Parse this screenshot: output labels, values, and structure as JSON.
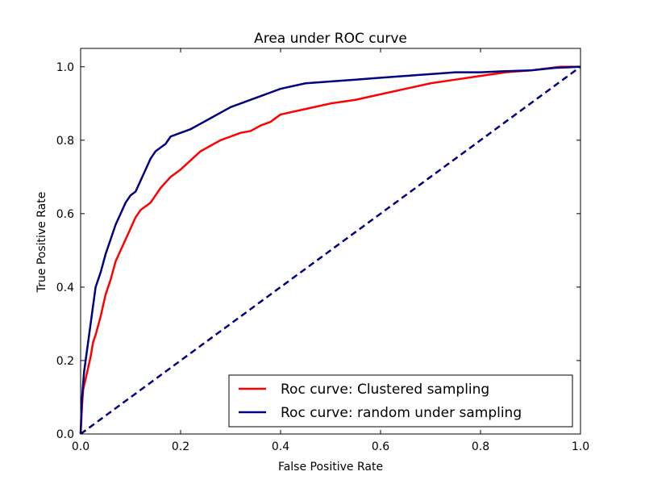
{
  "chart_data": {
    "type": "line",
    "title": "Area under ROC curve",
    "xlabel": "False Positive Rate",
    "ylabel": "True Positive Rate",
    "xlim": [
      0.0,
      1.0
    ],
    "ylim": [
      0.0,
      1.05
    ],
    "xticks": [
      "0.0",
      "0.2",
      "0.4",
      "0.6",
      "0.8",
      "1.0"
    ],
    "yticks": [
      "0.0",
      "0.2",
      "0.4",
      "0.6",
      "0.8",
      "1.0"
    ],
    "grid": false,
    "legend_position": "lower-right",
    "series": [
      {
        "name": "Roc curve: Clustered sampling",
        "color": "#ff0000",
        "style": "solid",
        "x": [
          0.0,
          0.003,
          0.005,
          0.01,
          0.015,
          0.02,
          0.025,
          0.03,
          0.04,
          0.05,
          0.06,
          0.07,
          0.08,
          0.09,
          0.1,
          0.11,
          0.12,
          0.13,
          0.14,
          0.15,
          0.16,
          0.18,
          0.2,
          0.22,
          0.24,
          0.26,
          0.28,
          0.3,
          0.32,
          0.34,
          0.36,
          0.38,
          0.4,
          0.45,
          0.5,
          0.55,
          0.6,
          0.65,
          0.7,
          0.75,
          0.8,
          0.85,
          0.9,
          0.93,
          0.96,
          1.0
        ],
        "y": [
          0.0,
          0.08,
          0.12,
          0.15,
          0.18,
          0.21,
          0.25,
          0.27,
          0.32,
          0.38,
          0.42,
          0.47,
          0.5,
          0.53,
          0.56,
          0.59,
          0.61,
          0.62,
          0.63,
          0.65,
          0.67,
          0.7,
          0.72,
          0.745,
          0.77,
          0.785,
          0.8,
          0.81,
          0.82,
          0.825,
          0.84,
          0.85,
          0.87,
          0.885,
          0.9,
          0.91,
          0.925,
          0.94,
          0.955,
          0.965,
          0.975,
          0.985,
          0.99,
          0.995,
          1.0,
          1.0
        ]
      },
      {
        "name": "Roc curve: random under sampling",
        "color": "#000080",
        "style": "solid",
        "x": [
          0.0,
          0.002,
          0.004,
          0.007,
          0.01,
          0.015,
          0.02,
          0.025,
          0.03,
          0.04,
          0.05,
          0.06,
          0.07,
          0.08,
          0.09,
          0.1,
          0.11,
          0.12,
          0.13,
          0.14,
          0.15,
          0.16,
          0.17,
          0.18,
          0.2,
          0.22,
          0.24,
          0.26,
          0.28,
          0.3,
          0.32,
          0.34,
          0.36,
          0.38,
          0.4,
          0.45,
          0.5,
          0.55,
          0.6,
          0.65,
          0.7,
          0.75,
          0.8,
          0.85,
          0.9,
          0.95,
          1.0
        ],
        "y": [
          0.0,
          0.08,
          0.12,
          0.17,
          0.2,
          0.25,
          0.3,
          0.35,
          0.4,
          0.44,
          0.49,
          0.53,
          0.57,
          0.6,
          0.63,
          0.65,
          0.66,
          0.69,
          0.72,
          0.75,
          0.77,
          0.78,
          0.79,
          0.81,
          0.82,
          0.83,
          0.845,
          0.86,
          0.875,
          0.89,
          0.9,
          0.91,
          0.92,
          0.93,
          0.94,
          0.955,
          0.96,
          0.965,
          0.97,
          0.975,
          0.98,
          0.985,
          0.985,
          0.988,
          0.99,
          0.997,
          1.0
        ]
      },
      {
        "name": "",
        "color": "#000080",
        "style": "dashed",
        "x": [
          0.0,
          1.0
        ],
        "y": [
          0.0,
          1.0
        ]
      }
    ]
  },
  "legend": {
    "items": [
      {
        "label": "Roc curve: Clustered sampling",
        "color": "#ff0000"
      },
      {
        "label": "Roc curve: random under sampling",
        "color": "#000080"
      }
    ]
  }
}
